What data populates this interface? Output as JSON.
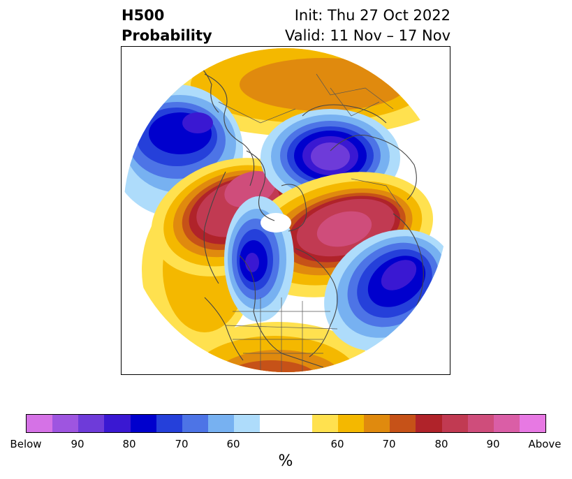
{
  "header": {
    "title_line1": "H500",
    "title_line2": "Probability",
    "init": "Init: Thu 27 Oct 2022",
    "valid": "Valid: 11 Nov – 17 Nov"
  },
  "colorbar": {
    "colors": [
      "#d572e6",
      "#9e55e0",
      "#6e3bd9",
      "#3a18d2",
      "#0000cd",
      "#2540da",
      "#4d74e6",
      "#77b1f1",
      "#aedcfb",
      "#ffffff",
      "#ffffff",
      "#ffe14f",
      "#f4b800",
      "#e08a0e",
      "#c65218",
      "#b0232a",
      "#c13a52",
      "#cf4d7b",
      "#da5ea6",
      "#e779e3"
    ],
    "tick_labels": [
      "Below",
      "90",
      "80",
      "70",
      "60",
      "60",
      "70",
      "80",
      "90",
      "Above"
    ],
    "unit": "%"
  },
  "map": {
    "projection": "north-polar-stereographic",
    "features": [
      "coastlines",
      "country-borders",
      "state-borders"
    ],
    "regions": [
      {
        "name": "below-normal-aleutians",
        "category": "below",
        "peak": "80-90"
      },
      {
        "name": "below-normal-eastern-siberia",
        "category": "below",
        "peak": "90"
      },
      {
        "name": "below-normal-western-canada",
        "category": "below",
        "peak": "80-90"
      },
      {
        "name": "below-normal-north-atlantic",
        "category": "below",
        "peak": "80-90"
      },
      {
        "name": "above-normal-alaska-arctic",
        "category": "above",
        "peak": "80-90"
      },
      {
        "name": "above-normal-greenland-arctic",
        "category": "above",
        "peak": "80-90"
      },
      {
        "name": "above-normal-eastern-us",
        "category": "above",
        "peak": "70"
      },
      {
        "name": "above-normal-europe-russia",
        "category": "above",
        "peak": "70"
      }
    ]
  }
}
